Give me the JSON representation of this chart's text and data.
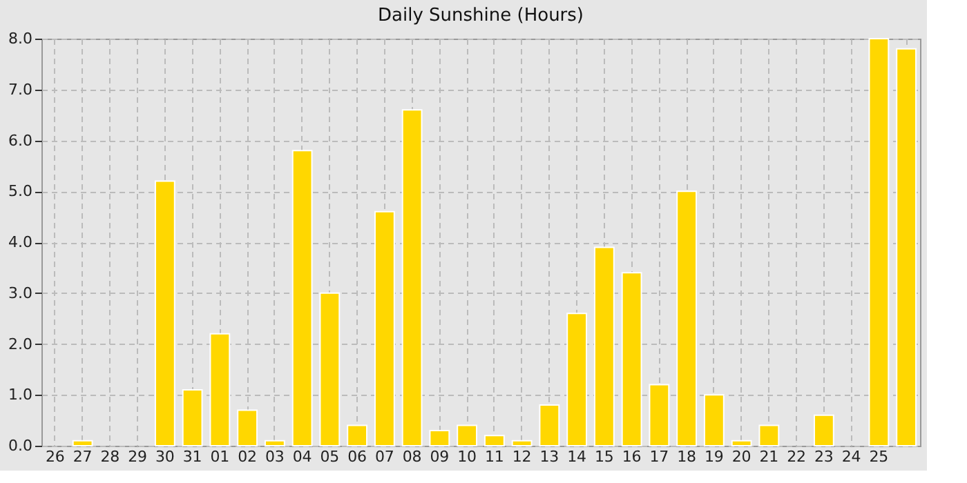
{
  "chart_data": {
    "type": "bar",
    "title": "Daily Sunshine (Hours)",
    "categories": [
      "26",
      "27",
      "28",
      "29",
      "30",
      "31",
      "01",
      "02",
      "03",
      "04",
      "05",
      "06",
      "07",
      "08",
      "09",
      "10",
      "11",
      "12",
      "13",
      "14",
      "15",
      "16",
      "17",
      "18",
      "19",
      "20",
      "21",
      "22",
      "23",
      "24",
      "25",
      null
    ],
    "values": [
      0,
      0.1,
      0,
      0,
      5.2,
      1.1,
      2.2,
      0.7,
      0.1,
      5.8,
      3.0,
      0.4,
      4.6,
      6.6,
      0.3,
      0.4,
      0.2,
      0.1,
      0.8,
      2.6,
      3.9,
      3.4,
      1.2,
      5.0,
      1.0,
      0.1,
      0.4,
      0,
      0.6,
      0,
      8.0,
      7.8
    ],
    "color": "#ffd700",
    "ylim": [
      0,
      8
    ],
    "yticks": [
      {
        "value": 0,
        "label": "0.0"
      },
      {
        "value": 1,
        "label": "1.0"
      },
      {
        "value": 2,
        "label": "2.0"
      },
      {
        "value": 3,
        "label": "3.0"
      },
      {
        "value": 4,
        "label": "4.0"
      },
      {
        "value": 5,
        "label": "5.0"
      },
      {
        "value": 6,
        "label": "6.0"
      },
      {
        "value": 7,
        "label": "7.0"
      },
      {
        "value": 8,
        "label": "8.0"
      }
    ],
    "grid": true
  }
}
